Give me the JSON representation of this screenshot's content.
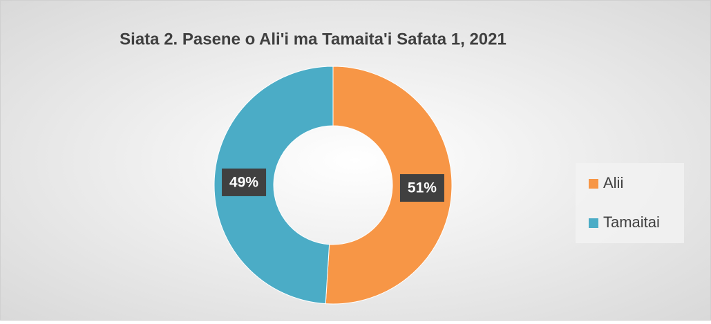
{
  "chart_data": {
    "type": "donut",
    "title": "Siata 2. Pasene o Ali'i ma Tamaita'i Safata 1, 2021",
    "categories": [
      "Alii",
      "Tamaitai"
    ],
    "values": [
      51,
      49
    ],
    "value_labels": [
      "51%",
      "49%"
    ],
    "colors": [
      "#f79646",
      "#4bacc6"
    ],
    "legend": "right"
  }
}
